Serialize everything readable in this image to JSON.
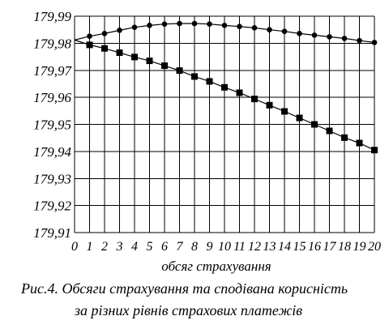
{
  "chart_data": {
    "type": "line",
    "xlabel": "обсяг страхування",
    "ylabel": "",
    "x": [
      0,
      1,
      2,
      3,
      4,
      5,
      6,
      7,
      8,
      9,
      10,
      11,
      12,
      13,
      14,
      15,
      16,
      17,
      18,
      19,
      20
    ],
    "xlim": [
      0,
      20
    ],
    "ylim": [
      179.91,
      179.99
    ],
    "yticks": [
      179.91,
      179.92,
      179.93,
      179.94,
      179.95,
      179.96,
      179.97,
      179.98,
      179.99
    ],
    "ytick_labels": [
      "179,91",
      "179,92",
      "179,93",
      "179,94",
      "179,95",
      "179,96",
      "179,97",
      "179,98",
      "179,99"
    ],
    "grid": true,
    "legend": "none",
    "series": [
      {
        "marker": "circle",
        "values": [
          179.9812,
          179.9826,
          179.9836,
          179.9848,
          179.9859,
          179.9866,
          179.9871,
          179.9873,
          179.9873,
          179.9871,
          179.9866,
          179.9862,
          179.9857,
          179.985,
          179.9844,
          179.9836,
          179.983,
          179.9824,
          179.9818,
          179.981,
          179.9803
        ]
      },
      {
        "marker": "square",
        "values": [
          179.9812,
          179.9794,
          179.9781,
          179.9765,
          179.9749,
          179.9735,
          179.9717,
          179.9699,
          179.9677,
          179.9659,
          179.9637,
          179.9617,
          179.9594,
          179.9571,
          179.9548,
          179.9524,
          179.95,
          179.9476,
          179.9451,
          179.9431,
          179.9405
        ]
      }
    ]
  },
  "caption": {
    "line1": "Рис.4. Обсяги страхування та сподівана корисність",
    "line2": "за різних рівнів страхових платежів"
  }
}
